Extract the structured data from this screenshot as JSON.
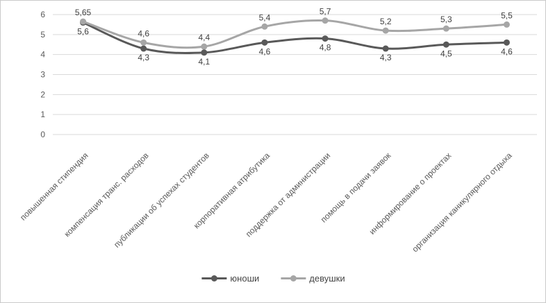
{
  "chart_data": {
    "type": "line",
    "title": "",
    "xlabel": "",
    "ylabel": "",
    "categories": [
      "повышенная стипендия",
      "компенсация транс. расходов",
      "публикации об успехах студентов",
      "корпоративная атрибутика",
      "поддержка от администрации",
      "помощь в подачи заявок",
      "информирование о проектах",
      "организация каникулярного отдыха"
    ],
    "series": [
      {
        "name": "юноши",
        "color": "#595959",
        "values": [
          5.6,
          4.3,
          4.1,
          4.6,
          4.8,
          4.3,
          4.5,
          4.6
        ],
        "labels": [
          "5,6",
          "4,3",
          "4,1",
          "4,6",
          "4,8",
          "4,3",
          "4,5",
          "4,6"
        ],
        "label_position": "below"
      },
      {
        "name": "девушки",
        "color": "#a6a6a6",
        "values": [
          5.65,
          4.6,
          4.4,
          5.4,
          5.7,
          5.2,
          5.3,
          5.5
        ],
        "labels": [
          "5,65",
          "4,6",
          "4,4",
          "5,4",
          "5,7",
          "5,2",
          "5,3",
          "5,5"
        ],
        "label_position": "above"
      }
    ],
    "y_axis": {
      "min": 0,
      "max": 6,
      "step": 1,
      "ticks": [
        "0",
        "1",
        "2",
        "3",
        "4",
        "5",
        "6"
      ]
    },
    "grid": true,
    "smooth_lines": true,
    "legend_position": "bottom",
    "colors": {
      "gridline": "#d9d9d9",
      "axis_text": "#595959",
      "category_text": "#595959",
      "data_label": "#404040",
      "figure_border": "#c9c9c9",
      "background": "#ffffff"
    }
  }
}
